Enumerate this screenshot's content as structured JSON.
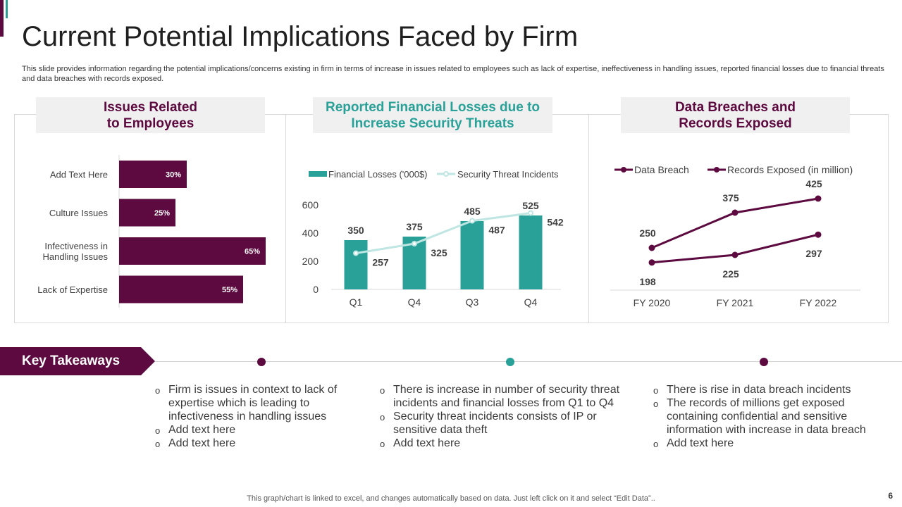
{
  "title": "Current Potential Implications Faced by Firm",
  "subtitle": "This slide provides information regarding the potential implications/concerns existing in firm in terms of increase in  issues related to employees such as lack of expertise, ineffectiveness in handling issues, reported financial losses due to financial threats and data breaches with records exposed.",
  "colors": {
    "purple": "#5c0a3f",
    "teal": "#2aa198",
    "lightTeal": "#bfe6e2"
  },
  "panels": {
    "employees_title": "Issues Related\nto Employees",
    "losses_title": "Reported Financial Losses due to\nIncrease Security Threats",
    "breaches_title": "Data Breaches and\nRecords Exposed"
  },
  "chart_data": [
    {
      "type": "bar",
      "orientation": "horizontal",
      "title": "Issues Related to Employees",
      "categories": [
        "Add Text Here",
        "Culture Issues",
        "Infectiveness in\nHandling Issues",
        "Lack of Expertise"
      ],
      "values": [
        30,
        25,
        65,
        55
      ],
      "labels": [
        "30%",
        "25%",
        "65%",
        "55%"
      ],
      "xlim": [
        0,
        100
      ]
    },
    {
      "type": "bar",
      "title": "Reported Financial Losses due to Increase Security Threats",
      "categories": [
        "Q1",
        "Q4",
        "Q3",
        "Q4"
      ],
      "series": [
        {
          "name": "Financial Losses  ('000$)",
          "kind": "bar",
          "values": [
            350,
            375,
            485,
            525
          ]
        },
        {
          "name": "Security Threat Incidents",
          "kind": "line",
          "values": [
            257,
            325,
            487,
            542
          ]
        }
      ],
      "yticks": [
        "0",
        "200",
        "400",
        "600"
      ],
      "ylim": [
        0,
        600
      ],
      "legend": "top"
    },
    {
      "type": "line",
      "title": "Data Breaches and Records Exposed",
      "categories": [
        "FY 2020",
        "FY 2021",
        "FY 2022"
      ],
      "series": [
        {
          "name": "Data Breach",
          "values": [
            250,
            375,
            425
          ]
        },
        {
          "name": "Records Exposed (in million)",
          "values": [
            198,
            225,
            297
          ]
        }
      ],
      "ylim": [
        100,
        500
      ],
      "legend": "top"
    }
  ],
  "takeaways": {
    "label": "Key Takeaways",
    "columns": [
      [
        "Firm is issues in context to lack of expertise which is leading to infectiveness in handling issues",
        "Add text here",
        "Add text here"
      ],
      [
        "There is increase in number of security threat incidents and financial losses from Q1 to Q4",
        "Security threat incidents consists of IP or sensitive data theft",
        "Add text here"
      ],
      [
        "There is rise in data breach incidents",
        "The records of millions get exposed containing confidential and sensitive information with increase in data breach",
        "Add text here"
      ]
    ]
  },
  "footer": "This graph/chart is linked to excel,  and changes automatically based on data. Just left click on it and select “Edit Data”..",
  "page_number": "6"
}
